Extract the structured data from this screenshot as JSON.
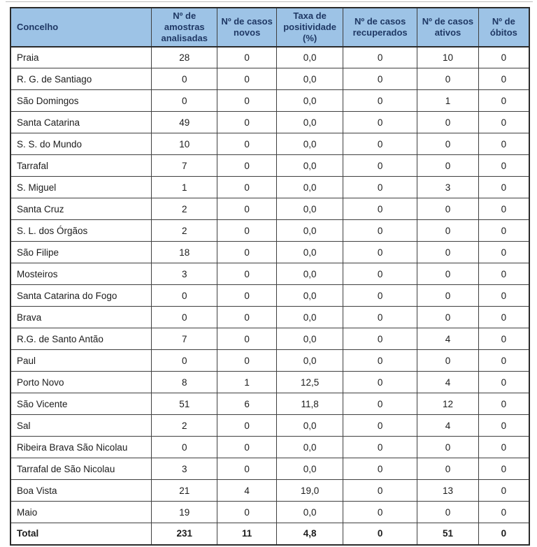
{
  "colors": {
    "header_bg": "#9DC3E6",
    "header_text": "#1F3864",
    "border": "#3f3f3f",
    "body_text": "#1c1c1c"
  },
  "chart_data": {
    "type": "table",
    "total_label": "Total",
    "columns": [
      "Concelho",
      "Nº de amostras analisadas",
      "Nº de casos novos",
      "Taxa de positividade (%)",
      "Nº de casos recuperados",
      "Nº de casos ativos",
      "Nº de óbitos"
    ],
    "rows": [
      [
        "Praia",
        "28",
        "0",
        "0,0",
        "0",
        "10",
        "0"
      ],
      [
        "R. G. de Santiago",
        "0",
        "0",
        "0,0",
        "0",
        "0",
        "0"
      ],
      [
        "São Domingos",
        "0",
        "0",
        "0,0",
        "0",
        "1",
        "0"
      ],
      [
        "Santa Catarina",
        "49",
        "0",
        "0,0",
        "0",
        "0",
        "0"
      ],
      [
        "S. S. do Mundo",
        "10",
        "0",
        "0,0",
        "0",
        "0",
        "0"
      ],
      [
        "Tarrafal",
        "7",
        "0",
        "0,0",
        "0",
        "0",
        "0"
      ],
      [
        "S. Miguel",
        "1",
        "0",
        "0,0",
        "0",
        "3",
        "0"
      ],
      [
        "Santa Cruz",
        "2",
        "0",
        "0,0",
        "0",
        "0",
        "0"
      ],
      [
        "S. L. dos Órgãos",
        "2",
        "0",
        "0,0",
        "0",
        "0",
        "0"
      ],
      [
        "São Filipe",
        "18",
        "0",
        "0,0",
        "0",
        "0",
        "0"
      ],
      [
        "Mosteiros",
        "3",
        "0",
        "0,0",
        "0",
        "0",
        "0"
      ],
      [
        "Santa Catarina do Fogo",
        "0",
        "0",
        "0,0",
        "0",
        "0",
        "0"
      ],
      [
        "Brava",
        "0",
        "0",
        "0,0",
        "0",
        "0",
        "0"
      ],
      [
        "R.G. de Santo Antão",
        "7",
        "0",
        "0,0",
        "0",
        "4",
        "0"
      ],
      [
        "Paul",
        "0",
        "0",
        "0,0",
        "0",
        "0",
        "0"
      ],
      [
        "Porto Novo",
        "8",
        "1",
        "12,5",
        "0",
        "4",
        "0"
      ],
      [
        "São Vicente",
        "51",
        "6",
        "11,8",
        "0",
        "12",
        "0"
      ],
      [
        "Sal",
        "2",
        "0",
        "0,0",
        "0",
        "4",
        "0"
      ],
      [
        "Ribeira Brava São Nicolau",
        "0",
        "0",
        "0,0",
        "0",
        "0",
        "0"
      ],
      [
        "Tarrafal de São Nicolau",
        "3",
        "0",
        "0,0",
        "0",
        "0",
        "0"
      ],
      [
        "Boa Vista",
        "21",
        "4",
        "19,0",
        "0",
        "13",
        "0"
      ],
      [
        "Maio",
        "19",
        "0",
        "0,0",
        "0",
        "0",
        "0"
      ],
      [
        "Total",
        "231",
        "11",
        "4,8",
        "0",
        "51",
        "0"
      ]
    ]
  }
}
